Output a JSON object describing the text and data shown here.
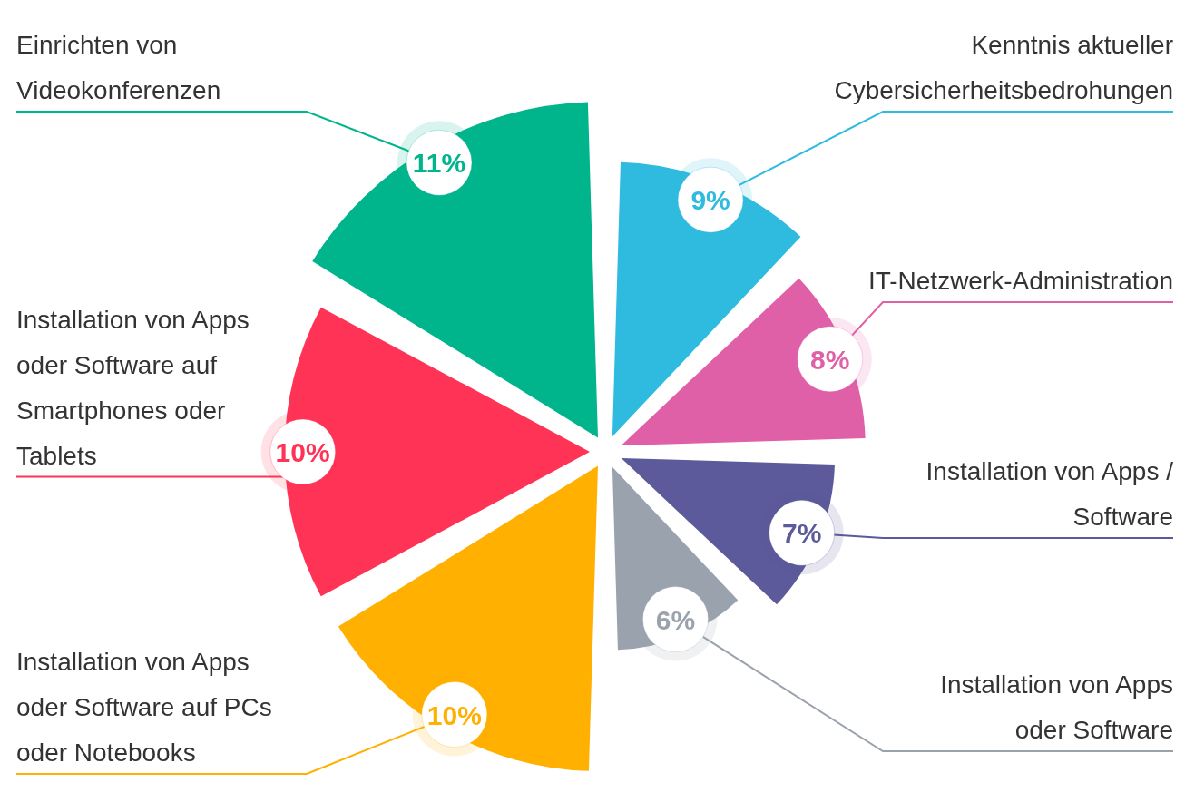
{
  "chart_data": {
    "type": "other",
    "categories": [
      "Kenntnis aktueller Cybersicherheitsbedrohungen",
      "IT-Netzwerk-Administration",
      "Installation von Apps / Software",
      "Installation von Apps oder Software",
      "Installation von Apps oder Software auf PCs oder Notebooks",
      "Installation von Apps oder Software auf Smartphones oder Tablets",
      "Einrichten von Videokonferenzen"
    ],
    "values": [
      9,
      8,
      7,
      6,
      10,
      10,
      11
    ],
    "value_labels": [
      "9%",
      "8%",
      "7%",
      "6%",
      "10%",
      "10%",
      "11%"
    ],
    "colors": [
      "#2ebbdf",
      "#e060a8",
      "#5c5a9a",
      "#9aa3ad",
      "#ffb000",
      "#ff3355",
      "#00b48c"
    ]
  }
}
